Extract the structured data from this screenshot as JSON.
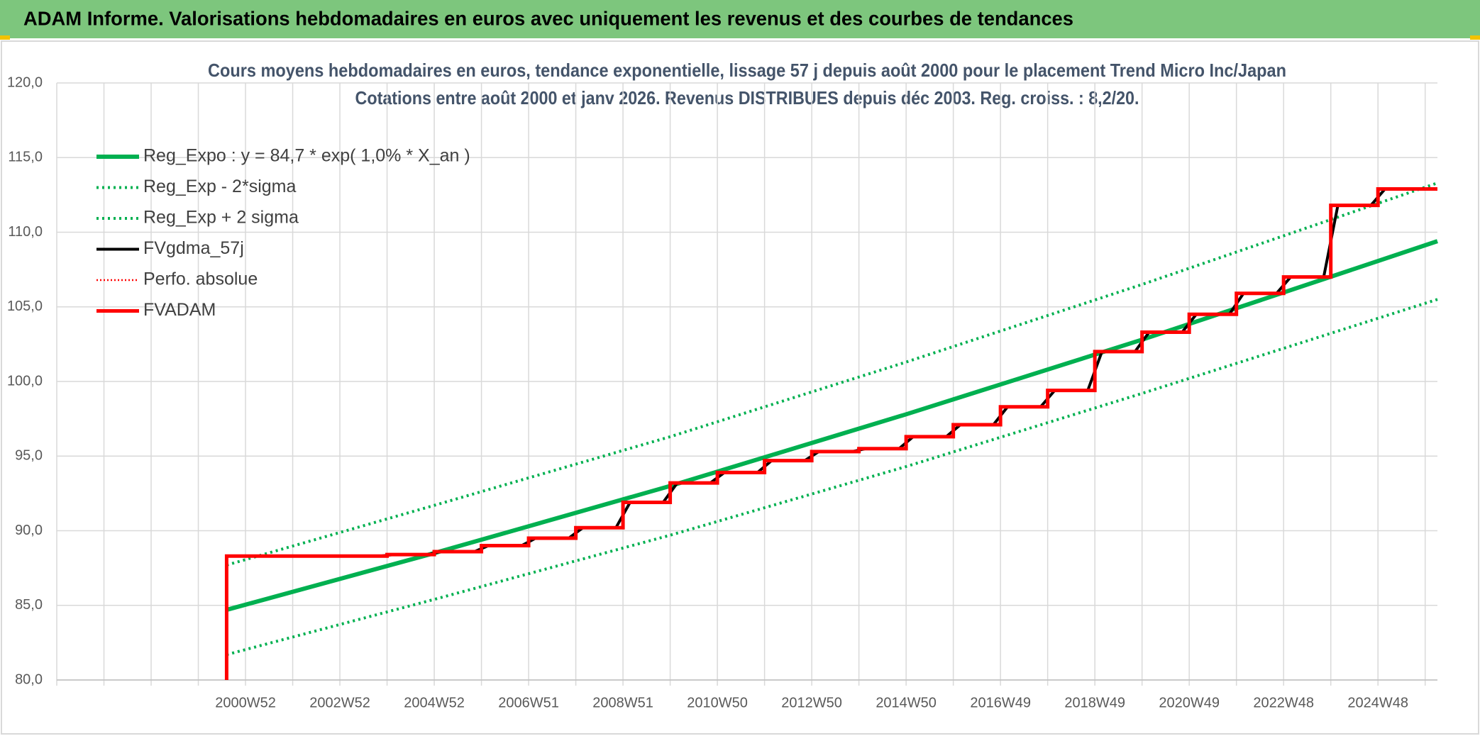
{
  "header": {
    "title": "ADAM Informe. Valorisations hebdomadaires en euros avec uniquement les revenus et des courbes de tendances"
  },
  "chart_data": {
    "type": "line",
    "title": "Cours moyens hebdomadaires en euros, tendance exponentielle, lissage 57 j depuis août 2000 pour le placement Trend Micro Inc/Japan",
    "subtitle": "Cotations entre août 2000 et janv 2026. Revenus DISTRIBUES depuis déc 2003. Reg. croiss. : 8,2/20.",
    "xlim": [
      1997,
      2026.26
    ],
    "xticks": [
      {
        "value": 1997,
        "label": null
      },
      {
        "value": 1998,
        "label": null
      },
      {
        "value": 1999,
        "label": null
      },
      {
        "value": 2000,
        "label": null
      },
      {
        "value": 2001,
        "label": "2000W52"
      },
      {
        "value": 2002,
        "label": null
      },
      {
        "value": 2003,
        "label": "2002W52"
      },
      {
        "value": 2004,
        "label": null
      },
      {
        "value": 2005,
        "label": "2004W52"
      },
      {
        "value": 2006,
        "label": null
      },
      {
        "value": 2007,
        "label": "2006W51"
      },
      {
        "value": 2008,
        "label": null
      },
      {
        "value": 2009,
        "label": "2008W51"
      },
      {
        "value": 2010,
        "label": null
      },
      {
        "value": 2011,
        "label": "2010W50"
      },
      {
        "value": 2012,
        "label": null
      },
      {
        "value": 2013,
        "label": "2012W50"
      },
      {
        "value": 2014,
        "label": null
      },
      {
        "value": 2015,
        "label": "2014W50"
      },
      {
        "value": 2016,
        "label": null
      },
      {
        "value": 2017,
        "label": "2016W49"
      },
      {
        "value": 2018,
        "label": null
      },
      {
        "value": 2019,
        "label": "2018W49"
      },
      {
        "value": 2020,
        "label": null
      },
      {
        "value": 2021,
        "label": "2020W49"
      },
      {
        "value": 2022,
        "label": null
      },
      {
        "value": 2023,
        "label": "2022W48"
      },
      {
        "value": 2024,
        "label": null
      },
      {
        "value": 2025,
        "label": "2024W48"
      },
      {
        "value": 2026,
        "label": null
      }
    ],
    "ylim": [
      80,
      120
    ],
    "yticks": [
      {
        "value": 80,
        "label": "80,0"
      },
      {
        "value": 85,
        "label": "85,0"
      },
      {
        "value": 90,
        "label": "90,0"
      },
      {
        "value": 95,
        "label": "95,0"
      },
      {
        "value": 100,
        "label": "100,0"
      },
      {
        "value": 105,
        "label": "105,0"
      },
      {
        "value": 110,
        "label": "110,0"
      },
      {
        "value": 115,
        "label": "115,0"
      },
      {
        "value": 120,
        "label": "120,0"
      }
    ],
    "grid": true,
    "series": [
      {
        "name": "Reg_Expo : y = 84,7 * exp( 1,0% *  X_an )",
        "color": "#00b050",
        "style": "solid",
        "x": [
          2000.6,
          2005,
          2010,
          2015,
          2020,
          2026.26
        ],
        "values": [
          84.7,
          88.5,
          93.0,
          97.8,
          102.8,
          109.4
        ]
      },
      {
        "name": "Reg_Exp - 2*sigma",
        "color": "#00b050",
        "style": "dotted",
        "x": [
          2000.6,
          2005,
          2010,
          2015,
          2020,
          2026.26
        ],
        "values": [
          81.7,
          85.4,
          89.7,
          94.3,
          99.2,
          105.5
        ]
      },
      {
        "name": "Reg_Exp + 2 sigma",
        "color": "#00b050",
        "style": "dotted",
        "x": [
          2000.6,
          2005,
          2010,
          2015,
          2020,
          2026.26
        ],
        "values": [
          87.7,
          91.7,
          96.3,
          101.3,
          106.5,
          113.3
        ]
      },
      {
        "name": "FVgdma_57j",
        "color": "#000000",
        "style": "medium",
        "x": [
          2000.6,
          2003.85,
          2004.15,
          2004.85,
          2005.15,
          2005.85,
          2006.15,
          2006.85,
          2007.15,
          2007.85,
          2008.15,
          2008.85,
          2009.15,
          2009.85,
          2010.15,
          2010.85,
          2011.15,
          2011.85,
          2012.15,
          2012.85,
          2013.15,
          2013.85,
          2014.15,
          2014.85,
          2015.15,
          2015.85,
          2016.15,
          2016.85,
          2017.15,
          2017.85,
          2018.15,
          2018.85,
          2019.15,
          2019.85,
          2020.15,
          2020.85,
          2021.15,
          2021.85,
          2022.15,
          2022.85,
          2023.15,
          2023.85,
          2024.15,
          2024.85,
          2025.15,
          2026.26
        ],
        "values": [
          88.3,
          88.3,
          88.4,
          88.4,
          88.6,
          88.6,
          89.0,
          89.0,
          89.5,
          89.5,
          90.2,
          90.2,
          91.9,
          91.9,
          93.2,
          93.2,
          93.9,
          93.9,
          94.7,
          94.7,
          95.3,
          95.3,
          95.5,
          95.5,
          96.3,
          96.3,
          97.1,
          97.1,
          98.3,
          98.3,
          99.4,
          99.4,
          102.0,
          102.0,
          103.3,
          103.3,
          104.5,
          104.5,
          105.9,
          105.9,
          107.0,
          107.0,
          111.8,
          111.8,
          112.9,
          112.9
        ]
      },
      {
        "name": "Perfo. absolue",
        "color": "#ff0000",
        "style": "thin-dotted",
        "x": [],
        "values": []
      },
      {
        "name": "FVADAM",
        "color": "#ff0000",
        "style": "thick",
        "step": true,
        "x": [
          2000.6,
          2000.6,
          2004,
          2005,
          2006,
          2007,
          2008,
          2009,
          2010,
          2011,
          2012,
          2013,
          2014,
          2015,
          2016,
          2017,
          2018,
          2019,
          2020,
          2021,
          2022,
          2023,
          2024,
          2025,
          2026.26
        ],
        "values": [
          80,
          88.3,
          88.4,
          88.6,
          89.0,
          89.5,
          90.2,
          91.9,
          93.2,
          93.9,
          94.7,
          95.3,
          95.5,
          96.3,
          97.1,
          98.3,
          99.4,
          102.0,
          103.3,
          104.5,
          105.9,
          107.0,
          111.8,
          112.9,
          112.9
        ]
      }
    ]
  }
}
